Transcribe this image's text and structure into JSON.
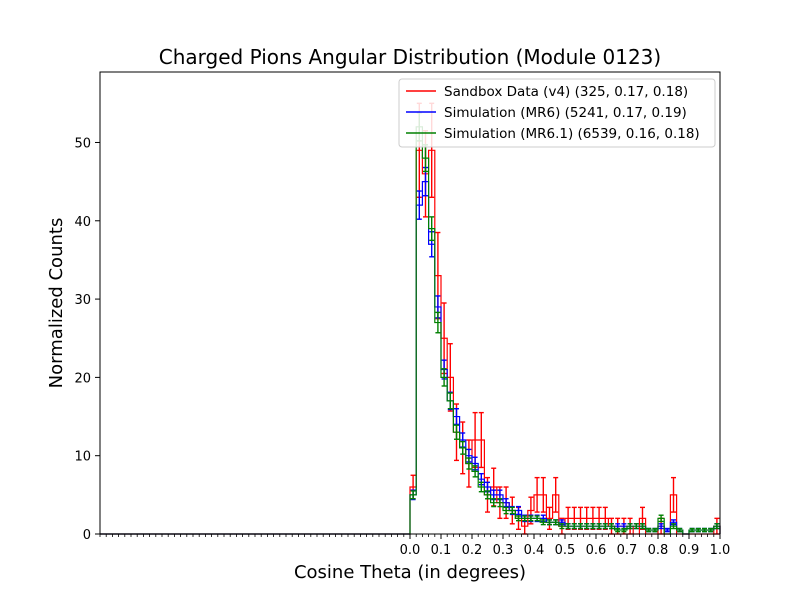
{
  "chart_data": {
    "type": "histogram",
    "title": "Charged Pions Angular Distribution (Module 0123)",
    "xlabel": "Cosine Theta (in degrees)",
    "ylabel": "Normalized Counts",
    "xlim": [
      -1.0,
      1.0
    ],
    "ylim": [
      0,
      59
    ],
    "xticks": [
      0.0,
      0.1,
      0.2,
      0.3,
      0.4,
      0.5,
      0.6,
      0.7,
      0.8,
      0.9,
      1.0
    ],
    "xtick_labels": [
      "0.0",
      "0.1",
      "0.2",
      "0.3",
      "0.4",
      "0.5",
      "0.6",
      "0.7",
      "0.8",
      "0.9",
      "1.0"
    ],
    "yticks": [
      0,
      10,
      20,
      30,
      40,
      50
    ],
    "ytick_labels": [
      "0",
      "10",
      "20",
      "30",
      "40",
      "50"
    ],
    "grid": false,
    "legend_position": "top-right",
    "bin_width": 0.02,
    "bin_start": 0.0,
    "series": [
      {
        "name": "Sandbox Data (v4)",
        "legend_label": "Sandbox Data (v4) (325, 0.17, 0.18)",
        "color": "#ff0000",
        "values": [
          6,
          49,
          46,
          49,
          33,
          25,
          20,
          13,
          11,
          9,
          12,
          12,
          5,
          6,
          4,
          4,
          3,
          2,
          1,
          3,
          5,
          5,
          2,
          5,
          1,
          2,
          2,
          2,
          2,
          2,
          2,
          2,
          1,
          1,
          1,
          1,
          0,
          2,
          0,
          0,
          1,
          0,
          5,
          0,
          0,
          0,
          0,
          0,
          0,
          1
        ],
        "errors": [
          1.5,
          6,
          5.5,
          6,
          5.5,
          4.5,
          4.3,
          3.6,
          3.3,
          3,
          3.5,
          3.5,
          2.2,
          2.4,
          2,
          2,
          1.7,
          1.4,
          1,
          1.7,
          2.2,
          2.2,
          1.4,
          2.2,
          1,
          1.4,
          1.4,
          1.4,
          1.4,
          1.4,
          1.4,
          1.4,
          1,
          1,
          1,
          1,
          0,
          1.4,
          0,
          0,
          1,
          0,
          2.2,
          0,
          0,
          0,
          0,
          0,
          0,
          1
        ]
      },
      {
        "name": "Simulation (MR6)",
        "legend_label": "Simulation (MR6) (5241, 0.17, 0.19)",
        "color": "#0000ff",
        "values": [
          5,
          42,
          45,
          37,
          29,
          21,
          17,
          15,
          12,
          10,
          9,
          7,
          6,
          5,
          5,
          4,
          3,
          3,
          2,
          2,
          2,
          2,
          1.5,
          1.5,
          1.5,
          1,
          1,
          1,
          1,
          1,
          1,
          1,
          1,
          1,
          1,
          1,
          1,
          1,
          0.5,
          0.5,
          1,
          0.5,
          1.5,
          0.5,
          0,
          0.5,
          0.5,
          0.5,
          0.5,
          1
        ],
        "errors": [
          0.6,
          1.8,
          1.8,
          1.6,
          1.4,
          1.2,
          1.1,
          1.0,
          0.9,
          0.8,
          0.8,
          0.7,
          0.6,
          0.6,
          0.6,
          0.5,
          0.5,
          0.5,
          0.4,
          0.4,
          0.4,
          0.4,
          0.3,
          0.3,
          0.3,
          0.3,
          0.3,
          0.3,
          0.3,
          0.3,
          0.3,
          0.3,
          0.3,
          0.3,
          0.3,
          0.3,
          0.3,
          0.3,
          0.2,
          0.2,
          0.3,
          0.2,
          0.3,
          0.2,
          0,
          0.2,
          0.2,
          0.2,
          0.2,
          0.3
        ]
      },
      {
        "name": "Simulation (MR6.1)",
        "legend_label": "Simulation (MR6.1) (6539, 0.16, 0.18)",
        "color": "#008000",
        "values": [
          5,
          52,
          48,
          39,
          27,
          20,
          17,
          13,
          11,
          9,
          8,
          6,
          5,
          4,
          4,
          3,
          3,
          2,
          2,
          2,
          2,
          1.5,
          1.5,
          1.5,
          1,
          1,
          1,
          1,
          1,
          1,
          1,
          1,
          1,
          0.5,
          0.5,
          1,
          1,
          1,
          0.5,
          0.5,
          2,
          0,
          1,
          0.5,
          0,
          0.5,
          0.5,
          0.5,
          0.5,
          1
        ],
        "errors": [
          0.5,
          1.8,
          1.7,
          1.5,
          1.3,
          1.1,
          1.0,
          0.9,
          0.8,
          0.7,
          0.7,
          0.6,
          0.5,
          0.5,
          0.5,
          0.4,
          0.4,
          0.3,
          0.3,
          0.3,
          0.3,
          0.3,
          0.3,
          0.3,
          0.3,
          0.3,
          0.3,
          0.3,
          0.3,
          0.3,
          0.3,
          0.3,
          0.3,
          0.2,
          0.2,
          0.3,
          0.3,
          0.3,
          0.2,
          0.2,
          0.4,
          0,
          0.3,
          0.2,
          0,
          0.2,
          0.2,
          0.2,
          0.2,
          0.3
        ]
      }
    ]
  }
}
